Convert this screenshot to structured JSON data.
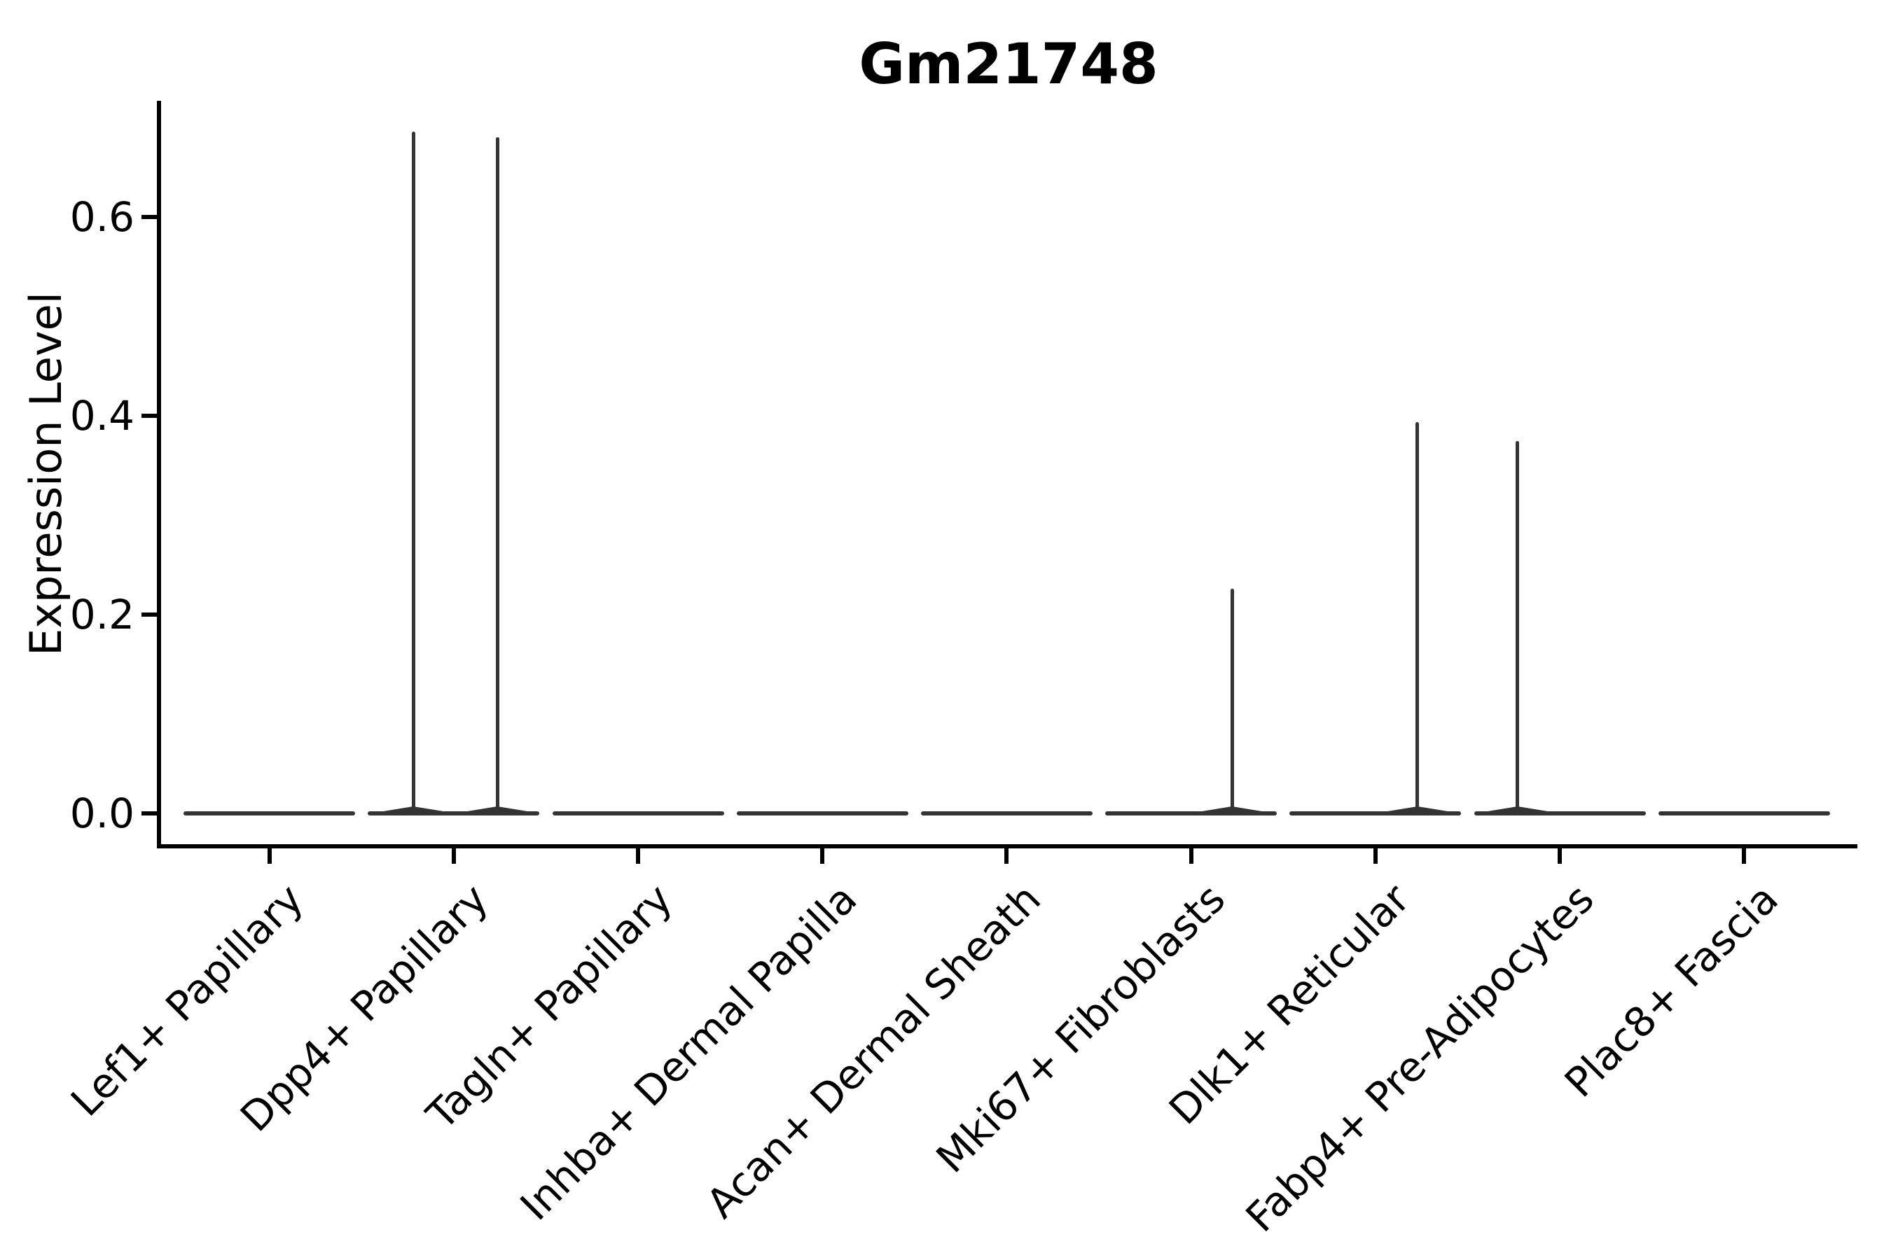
{
  "chart_data": {
    "type": "violin",
    "title": "Gm21748",
    "xlabel": "",
    "ylabel": "Expression Level",
    "yticks": [
      "0.0",
      "0.2",
      "0.4",
      "0.6"
    ],
    "ytick_values": [
      0.0,
      0.2,
      0.4,
      0.6
    ],
    "ylim": [
      -0.03,
      0.72
    ],
    "grid": false,
    "legend": "none",
    "categories": [
      "Lef1+ Papillary",
      "Dpp4+ Papillary",
      "Tagln+ Papillary",
      "Inhba+ Dermal Papilla",
      "Acan+ Dermal Sheath",
      "Mki67+ Fibroblasts",
      "Dlk1+ Reticular",
      "Fabp4+ Pre-Adipocytes",
      "Plac8+ Fascia"
    ],
    "violins": [
      {
        "label": "Lef1+ Papillary",
        "base_value": 0.0,
        "spikes": []
      },
      {
        "label": "Dpp4+ Papillary",
        "base_value": 0.0,
        "spikes": [
          {
            "value": 0.686,
            "offset_frac": -0.47
          },
          {
            "value": 0.68,
            "offset_frac": 0.51
          }
        ]
      },
      {
        "label": "Tagln+ Papillary",
        "base_value": 0.0,
        "spikes": []
      },
      {
        "label": "Inhba+ Dermal Papilla",
        "base_value": 0.0,
        "spikes": []
      },
      {
        "label": "Acan+ Dermal Sheath",
        "base_value": 0.0,
        "spikes": []
      },
      {
        "label": "Mki67+ Fibroblasts",
        "base_value": 0.0,
        "spikes": [
          {
            "value": 0.226,
            "offset_frac": 0.48
          }
        ]
      },
      {
        "label": "Dlk1+ Reticular",
        "base_value": 0.0,
        "spikes": [
          {
            "value": 0.394,
            "offset_frac": 0.49
          }
        ]
      },
      {
        "label": "Fabp4+ Pre-Adipocytes",
        "base_value": 0.0,
        "spikes": [
          {
            "value": 0.375,
            "offset_frac": -0.49
          }
        ]
      },
      {
        "label": "Plac8+ Fascia",
        "base_value": 0.0,
        "spikes": []
      }
    ],
    "colors": {
      "violin": "#333333",
      "axis": "#000000",
      "text": "#000000",
      "background": "#ffffff"
    }
  }
}
